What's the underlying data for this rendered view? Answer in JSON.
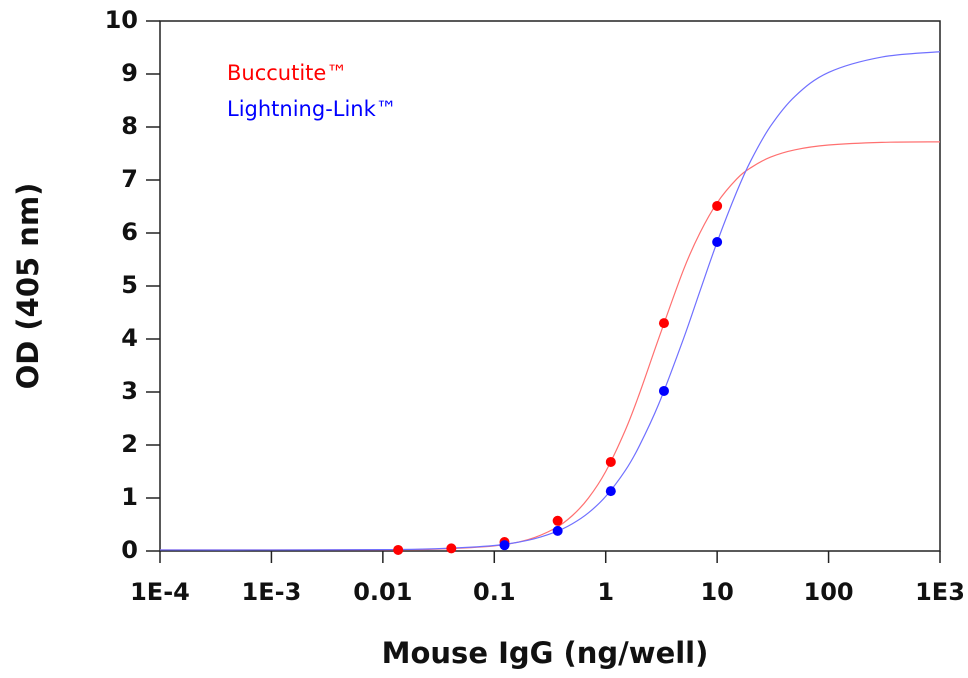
{
  "chart_data": {
    "type": "scatter",
    "xlabel": "Mouse IgG (ng/well)",
    "ylabel": "OD (405 nm)",
    "xscale": "log",
    "xlim": [
      0.0001,
      1000
    ],
    "xticks": [
      {
        "value": 0.0001,
        "label": "1E-4"
      },
      {
        "value": 0.001,
        "label": "1E-3"
      },
      0.01,
      0.1,
      1,
      10,
      100,
      {
        "value": 1000,
        "label": "1E3"
      }
    ],
    "ylim": [
      0,
      10
    ],
    "yticks": [
      0,
      1,
      2,
      3,
      4,
      5,
      6,
      7,
      8,
      9,
      10
    ],
    "grid": false,
    "legend": "upper left",
    "x": [
      0.01372,
      0.04115,
      0.1235,
      0.3704,
      1.111,
      3.333,
      10
    ],
    "fit_x": [
      0.0001,
      0.001,
      0.01,
      0.03,
      0.1,
      0.2,
      0.35,
      0.5,
      0.7,
      1,
      1.5,
      2,
      3,
      5,
      7,
      10,
      15,
      20,
      30,
      50,
      100,
      300,
      1000
    ],
    "series": [
      {
        "name": "Buccutite™",
        "color": "#ff0000",
        "fit_color": "#ff7070",
        "values": [
          0.02,
          0.05,
          0.17,
          0.57,
          1.68,
          4.3,
          6.51
        ],
        "fit_values": [
          0.02,
          0.02,
          0.023,
          0.035,
          0.096,
          0.214,
          0.427,
          0.665,
          1.0,
          1.5,
          2.28,
          2.96,
          4.02,
          5.31,
          6.0,
          6.57,
          7.02,
          7.23,
          7.43,
          7.57,
          7.66,
          7.71,
          7.72
        ]
      },
      {
        "name": "Lightning-Link™",
        "color": "#0000ff",
        "fit_color": "#7070ff",
        "values": [
          null,
          null,
          0.11,
          0.38,
          1.13,
          3.02,
          5.83
        ],
        "fit_values": [
          0.02,
          0.02,
          0.026,
          0.042,
          0.104,
          0.202,
          0.356,
          0.512,
          0.72,
          1.03,
          1.52,
          1.98,
          2.78,
          4.01,
          4.9,
          5.83,
          6.78,
          7.36,
          8.01,
          8.58,
          9.03,
          9.32,
          9.42
        ]
      }
    ]
  }
}
